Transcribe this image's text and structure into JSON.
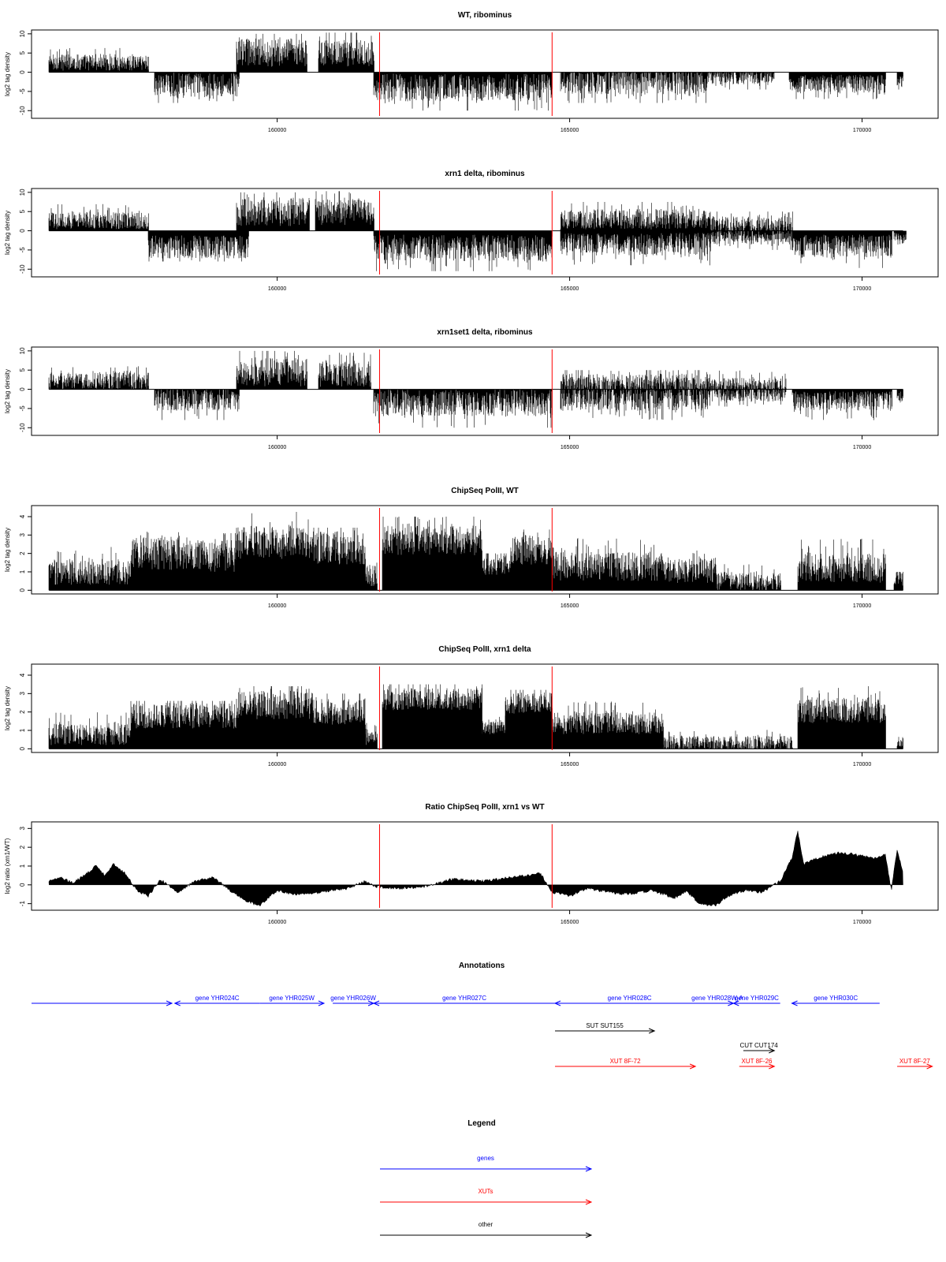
{
  "chart_data": [
    {
      "type": "bar",
      "title": "WT, ribominus",
      "xlabel": "",
      "ylabel": "log2 tag density",
      "ylim": [
        -12,
        11
      ],
      "yticks": [
        -10,
        -5,
        0,
        5,
        10
      ],
      "xlim": [
        155800,
        171300
      ],
      "xticks": [
        160000,
        165000,
        170000
      ],
      "markers_x": [
        161750,
        164700
      ],
      "segments": [
        {
          "start": 156100,
          "end": 157800,
          "mean": 2.6,
          "amp": 2.2,
          "max": 6.3
        },
        {
          "start": 157900,
          "end": 159350,
          "mean": -3.3,
          "amp": 3.2,
          "max": 8.0
        },
        {
          "start": 159300,
          "end": 160500,
          "mean": 5.0,
          "amp": 3.8,
          "max": 10.0
        },
        {
          "start": 160700,
          "end": 161650,
          "mean": 5.0,
          "amp": 3.5,
          "max": 10.3
        },
        {
          "start": 161650,
          "end": 164700,
          "mean": -4.0,
          "amp": 3.6,
          "max": 10.0
        },
        {
          "start": 164850,
          "end": 167350,
          "mean": -2.4,
          "amp": 3.4,
          "max": 8.0
        },
        {
          "start": 167350,
          "end": 168500,
          "mean": -1.2,
          "amp": 2.0,
          "max": 4.5
        },
        {
          "start": 168750,
          "end": 170400,
          "mean": -3.0,
          "amp": 2.4,
          "max": 7.0
        },
        {
          "start": 170600,
          "end": 170700,
          "mean": -2.5,
          "amp": 1.5,
          "max": 4.5
        }
      ]
    },
    {
      "type": "bar",
      "title": "xrn1 delta, ribominus",
      "xlabel": "",
      "ylabel": "log2 tag density",
      "ylim": [
        -12,
        11
      ],
      "yticks": [
        -10,
        -5,
        0,
        5,
        10
      ],
      "xlim": [
        155800,
        171300
      ],
      "xticks": [
        160000,
        165000,
        170000
      ],
      "markers_x": [
        161750,
        164700
      ],
      "segments": [
        {
          "start": 156100,
          "end": 157800,
          "mean": 2.6,
          "amp": 2.2,
          "max": 7.0
        },
        {
          "start": 157800,
          "end": 159500,
          "mean": -4.2,
          "amp": 3.0,
          "max": 8.0
        },
        {
          "start": 159300,
          "end": 160550,
          "mean": 5.0,
          "amp": 3.8,
          "max": 10.0
        },
        {
          "start": 160650,
          "end": 161650,
          "mean": 5.0,
          "amp": 3.5,
          "max": 10.3
        },
        {
          "start": 161650,
          "end": 164700,
          "mean": -4.5,
          "amp": 3.5,
          "max": 10.5
        },
        {
          "start": 164850,
          "end": 167400,
          "mean": 3.0,
          "amp": 2.7,
          "max": 7.5
        },
        {
          "start": 164850,
          "end": 167400,
          "mean": -3.5,
          "amp": 3.0,
          "max": 9.0
        },
        {
          "start": 167400,
          "end": 168800,
          "mean": 1.5,
          "amp": 2.3,
          "max": 5.0
        },
        {
          "start": 167400,
          "end": 168800,
          "mean": -1.6,
          "amp": 2.0,
          "max": 5.0
        },
        {
          "start": 168800,
          "end": 170500,
          "mean": -4.0,
          "amp": 3.0,
          "max": 10.0
        },
        {
          "start": 170550,
          "end": 170750,
          "mean": -2.0,
          "amp": 1.5,
          "max": 4.5
        }
      ]
    },
    {
      "type": "bar",
      "title": "xrn1set1 delta, ribominus",
      "xlabel": "",
      "ylabel": "log2 tag density",
      "ylim": [
        -12,
        11
      ],
      "yticks": [
        -10,
        -5,
        0,
        5,
        10
      ],
      "xlim": [
        155800,
        171300
      ],
      "xticks": [
        160000,
        165000,
        170000
      ],
      "markers_x": [
        161750,
        164700
      ],
      "segments": [
        {
          "start": 156100,
          "end": 157800,
          "mean": 2.2,
          "amp": 2.2,
          "max": 6.0
        },
        {
          "start": 157900,
          "end": 159350,
          "mean": -2.6,
          "amp": 3.0,
          "max": 8.0
        },
        {
          "start": 159300,
          "end": 160500,
          "mean": 4.5,
          "amp": 3.7,
          "max": 10.0
        },
        {
          "start": 160700,
          "end": 161600,
          "mean": 4.0,
          "amp": 3.4,
          "max": 9.5
        },
        {
          "start": 161650,
          "end": 164700,
          "mean": -3.5,
          "amp": 3.5,
          "max": 10.0
        },
        {
          "start": 164850,
          "end": 167350,
          "mean": 1.5,
          "amp": 2.6,
          "max": 5.0
        },
        {
          "start": 164850,
          "end": 167350,
          "mean": -2.4,
          "amp": 3.2,
          "max": 8.0
        },
        {
          "start": 167350,
          "end": 168700,
          "mean": 1.0,
          "amp": 2.0,
          "max": 5.0
        },
        {
          "start": 167350,
          "end": 168700,
          "mean": -1.3,
          "amp": 2.0,
          "max": 4.5
        },
        {
          "start": 168800,
          "end": 170500,
          "mean": -3.0,
          "amp": 2.6,
          "max": 8.5
        },
        {
          "start": 170600,
          "end": 170700,
          "mean": -2.0,
          "amp": 1.5,
          "max": 3.5
        }
      ]
    },
    {
      "type": "bar",
      "title": "ChipSeq PolII, WT",
      "xlabel": "",
      "ylabel": "log2 tag density",
      "ylim": [
        -0.2,
        4.6
      ],
      "yticks": [
        0,
        1,
        2,
        3,
        4
      ],
      "xlim": [
        155800,
        171300
      ],
      "xticks": [
        160000,
        165000,
        170000
      ],
      "markers_x": [
        161750,
        164700
      ],
      "segments": [
        {
          "start": 156100,
          "end": 157500,
          "mean": 1.0,
          "amp": 0.7,
          "max": 3.0
        },
        {
          "start": 157500,
          "end": 158700,
          "mean": 2.0,
          "amp": 0.9,
          "max": 3.3
        },
        {
          "start": 158700,
          "end": 159300,
          "mean": 1.9,
          "amp": 0.9,
          "max": 3.1
        },
        {
          "start": 159300,
          "end": 160600,
          "mean": 2.6,
          "amp": 0.9,
          "max": 4.3
        },
        {
          "start": 160600,
          "end": 161500,
          "mean": 2.3,
          "amp": 0.9,
          "max": 3.4
        },
        {
          "start": 161500,
          "end": 161700,
          "mean": 0.8,
          "amp": 0.6,
          "max": 1.5
        },
        {
          "start": 161800,
          "end": 163500,
          "mean": 2.7,
          "amp": 0.8,
          "max": 4.0
        },
        {
          "start": 163500,
          "end": 164000,
          "mean": 1.3,
          "amp": 0.5,
          "max": 2.0
        },
        {
          "start": 164000,
          "end": 164700,
          "mean": 2.2,
          "amp": 0.8,
          "max": 3.3
        },
        {
          "start": 164700,
          "end": 166600,
          "mean": 1.3,
          "amp": 0.8,
          "max": 3.0
        },
        {
          "start": 166600,
          "end": 167500,
          "mean": 1.1,
          "amp": 0.7,
          "max": 2.5
        },
        {
          "start": 167500,
          "end": 168600,
          "mean": 0.5,
          "amp": 0.5,
          "max": 2.2
        },
        {
          "start": 168900,
          "end": 170400,
          "mean": 1.2,
          "amp": 0.8,
          "max": 2.9
        },
        {
          "start": 170550,
          "end": 170700,
          "mean": 0.6,
          "amp": 0.4,
          "max": 1.0
        }
      ]
    },
    {
      "type": "bar",
      "title": "ChipSeq PolII, xrn1 delta",
      "xlabel": "",
      "ylabel": "log2 tag density",
      "ylim": [
        -0.2,
        4.6
      ],
      "yticks": [
        0,
        1,
        2,
        3,
        4
      ],
      "xlim": [
        155800,
        171300
      ],
      "xticks": [
        160000,
        165000,
        170000
      ],
      "markers_x": [
        161750,
        164700
      ],
      "segments": [
        {
          "start": 156100,
          "end": 157500,
          "mean": 0.8,
          "amp": 0.6,
          "max": 2.0
        },
        {
          "start": 157500,
          "end": 159300,
          "mean": 1.8,
          "amp": 0.7,
          "max": 2.6
        },
        {
          "start": 159300,
          "end": 160600,
          "mean": 2.4,
          "amp": 0.8,
          "max": 3.4
        },
        {
          "start": 160600,
          "end": 161500,
          "mean": 2.0,
          "amp": 0.7,
          "max": 3.0
        },
        {
          "start": 161500,
          "end": 161700,
          "mean": 0.7,
          "amp": 0.5,
          "max": 1.4
        },
        {
          "start": 161800,
          "end": 163500,
          "mean": 2.7,
          "amp": 0.6,
          "max": 3.5
        },
        {
          "start": 163500,
          "end": 163900,
          "mean": 1.2,
          "amp": 0.4,
          "max": 1.8
        },
        {
          "start": 163900,
          "end": 164700,
          "mean": 2.5,
          "amp": 0.6,
          "max": 3.2
        },
        {
          "start": 164700,
          "end": 166600,
          "mean": 1.4,
          "amp": 0.6,
          "max": 2.6
        },
        {
          "start": 166600,
          "end": 168800,
          "mean": 0.3,
          "amp": 0.4,
          "max": 2.2
        },
        {
          "start": 168900,
          "end": 170400,
          "mean": 2.1,
          "amp": 0.7,
          "max": 3.4
        },
        {
          "start": 170600,
          "end": 170700,
          "mean": 0.4,
          "amp": 0.3,
          "max": 0.8
        }
      ]
    },
    {
      "type": "area",
      "title": "Ratio ChipSeq PolII, xrn1 vs WT",
      "xlabel": "",
      "ylabel": "log2 ratio (xrn1/WT)",
      "ylim": [
        -1.35,
        3.35
      ],
      "yticks": [
        -1,
        0,
        1,
        2,
        3
      ],
      "xlim": [
        155800,
        171300
      ],
      "xticks": [
        160000,
        165000,
        170000
      ],
      "markers_x": [
        161750,
        164700
      ],
      "points": [
        [
          156100,
          0.2
        ],
        [
          156300,
          0.4
        ],
        [
          156500,
          0.1
        ],
        [
          156700,
          0.5
        ],
        [
          156900,
          1.0
        ],
        [
          157050,
          0.5
        ],
        [
          157200,
          1.1
        ],
        [
          157400,
          0.6
        ],
        [
          157600,
          -0.3
        ],
        [
          157800,
          -0.6
        ],
        [
          158000,
          0.3
        ],
        [
          158300,
          -0.4
        ],
        [
          158600,
          0.2
        ],
        [
          158900,
          0.4
        ],
        [
          159200,
          -0.3
        ],
        [
          159500,
          -0.9
        ],
        [
          159700,
          -1.1
        ],
        [
          160000,
          -0.3
        ],
        [
          160300,
          -0.5
        ],
        [
          160600,
          -0.5
        ],
        [
          160900,
          -0.3
        ],
        [
          161200,
          -0.2
        ],
        [
          161500,
          0.2
        ],
        [
          161700,
          -0.1
        ],
        [
          162000,
          -0.2
        ],
        [
          162500,
          -0.1
        ],
        [
          163000,
          0.3
        ],
        [
          163500,
          0.2
        ],
        [
          164000,
          0.4
        ],
        [
          164500,
          0.6
        ],
        [
          164700,
          -0.4
        ],
        [
          165000,
          -0.6
        ],
        [
          165300,
          -0.2
        ],
        [
          165700,
          -0.4
        ],
        [
          166000,
          -0.5
        ],
        [
          166400,
          -0.3
        ],
        [
          166800,
          -0.7
        ],
        [
          167000,
          -0.3
        ],
        [
          167200,
          -1.0
        ],
        [
          167500,
          -1.1
        ],
        [
          167700,
          -0.6
        ],
        [
          168000,
          -0.3
        ],
        [
          168300,
          -0.4
        ],
        [
          168600,
          0.2
        ],
        [
          168800,
          1.4
        ],
        [
          168900,
          2.9
        ],
        [
          169000,
          1.1
        ],
        [
          169300,
          1.5
        ],
        [
          169600,
          1.7
        ],
        [
          169900,
          1.6
        ],
        [
          170200,
          1.4
        ],
        [
          170400,
          1.6
        ],
        [
          170500,
          -0.3
        ],
        [
          170600,
          1.9
        ],
        [
          170700,
          0.6
        ]
      ]
    }
  ],
  "annotations": {
    "title": "Annotations",
    "xlim": [
      155800,
      171300
    ],
    "rows": [
      [
        {
          "label": "",
          "start": 155800,
          "end": 158200,
          "dir": 1,
          "type": "gene"
        },
        {
          "label": "gene YHR024C",
          "start": 158250,
          "end": 159700,
          "dir": -1,
          "type": "gene"
        },
        {
          "label": "gene YHR025W",
          "start": 159700,
          "end": 160800,
          "dir": 1,
          "type": "gene"
        },
        {
          "label": "gene YHR026W",
          "start": 160950,
          "end": 161650,
          "dir": 1,
          "type": "gene"
        },
        {
          "label": "gene YHR027C",
          "start": 161650,
          "end": 164750,
          "dir": -1,
          "type": "gene"
        },
        {
          "label": "gene YHR028C",
          "start": 164750,
          "end": 167300,
          "dir": -1,
          "type": "gene"
        },
        {
          "label": "gene YHR028W-A",
          "start": 167250,
          "end": 167800,
          "dir": 1,
          "type": "gene"
        },
        {
          "label": "gene YHR029C",
          "start": 167800,
          "end": 168600,
          "dir": -1,
          "type": "gene"
        },
        {
          "label": "gene YHR030C",
          "start": 168800,
          "end": 170300,
          "dir": -1,
          "type": "gene"
        }
      ],
      [
        {
          "label": "SUT SUT155",
          "start": 164750,
          "end": 166450,
          "dir": 1,
          "type": "other"
        }
      ],
      [
        {
          "label": "CUT CUT174",
          "start": 167970,
          "end": 168500,
          "dir": 1,
          "type": "other"
        }
      ],
      [
        {
          "label": "XUT 8F-72",
          "start": 164750,
          "end": 167150,
          "dir": 1,
          "type": "xut"
        },
        {
          "label": "XUT 8F-26",
          "start": 167900,
          "end": 168500,
          "dir": 1,
          "type": "xut"
        },
        {
          "label": "XUT 8F-27",
          "start": 170600,
          "end": 171200,
          "dir": 1,
          "type": "xut"
        }
      ]
    ]
  },
  "legend": {
    "title": "Legend",
    "items": [
      {
        "label": "genes",
        "color": "#0000ff"
      },
      {
        "label": "XUTs",
        "color": "#ff0000"
      },
      {
        "label": "other",
        "color": "#000000"
      }
    ]
  },
  "colors": {
    "gene": "#0000ff",
    "xut": "#ff0000",
    "other": "#000000",
    "marker": "#ff0000",
    "bars": "#000000"
  }
}
